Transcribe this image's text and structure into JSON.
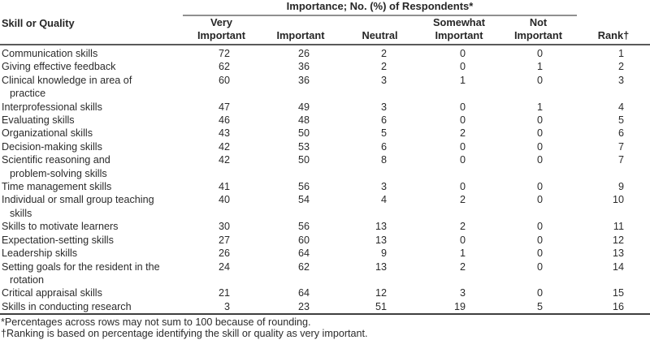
{
  "table": {
    "spanner": "Importance; No. (%) of Respondents*",
    "columns": [
      "Skill or Quality",
      "Very\nImportant",
      "Important",
      "Neutral",
      "Somewhat\nImportant",
      "Not\nImportant",
      "Rank†"
    ],
    "rows": [
      {
        "skill": "Communication skills",
        "values": [
          72,
          26,
          2,
          0,
          0
        ],
        "rank": 1
      },
      {
        "skill": "Giving effective feedback",
        "values": [
          62,
          36,
          2,
          0,
          1
        ],
        "rank": 2
      },
      {
        "skill": "Clinical knowledge in area of\npractice",
        "values": [
          60,
          36,
          3,
          1,
          0
        ],
        "rank": 3
      },
      {
        "skill": "Interprofessional skills",
        "values": [
          47,
          49,
          3,
          0,
          1
        ],
        "rank": 4
      },
      {
        "skill": "Evaluating skills",
        "values": [
          46,
          48,
          6,
          0,
          0
        ],
        "rank": 5
      },
      {
        "skill": "Organizational skills",
        "values": [
          43,
          50,
          5,
          2,
          0
        ],
        "rank": 6
      },
      {
        "skill": "Decision-making skills",
        "values": [
          42,
          53,
          6,
          0,
          0
        ],
        "rank": 7
      },
      {
        "skill": "Scientific reasoning and\nproblem-solving skills",
        "values": [
          42,
          50,
          8,
          0,
          0
        ],
        "rank": 7
      },
      {
        "skill": "Time management skills",
        "values": [
          41,
          56,
          3,
          0,
          0
        ],
        "rank": 9
      },
      {
        "skill": "Individual or small group teaching\nskills",
        "values": [
          40,
          54,
          4,
          2,
          0
        ],
        "rank": 10
      },
      {
        "skill": "Skills to motivate learners",
        "values": [
          30,
          56,
          13,
          2,
          0
        ],
        "rank": 11
      },
      {
        "skill": "Expectation-setting skills",
        "values": [
          27,
          60,
          13,
          0,
          0
        ],
        "rank": 12
      },
      {
        "skill": "Leadership skills",
        "values": [
          26,
          64,
          9,
          1,
          0
        ],
        "rank": 13
      },
      {
        "skill": "Setting goals for the resident in the\nrotation",
        "values": [
          24,
          62,
          13,
          2,
          0
        ],
        "rank": 14
      },
      {
        "skill": "Critical appraisal skills",
        "values": [
          21,
          64,
          12,
          3,
          0
        ],
        "rank": 15
      },
      {
        "skill": "Skills in conducting research",
        "values": [
          3,
          23,
          51,
          19,
          5
        ],
        "rank": 16
      }
    ],
    "footnotes": [
      "*Percentages across rows may not sum to 100 because of rounding.",
      "†Ranking is based on percentage identifying the skill or quality as very important."
    ]
  },
  "colors": {
    "background": "#ffffff",
    "text": "#2b2b2b",
    "rule_dark": "#3f3f3f",
    "rule_header": "#5a5a5a",
    "rule_spanner": "#8f8f8f"
  }
}
